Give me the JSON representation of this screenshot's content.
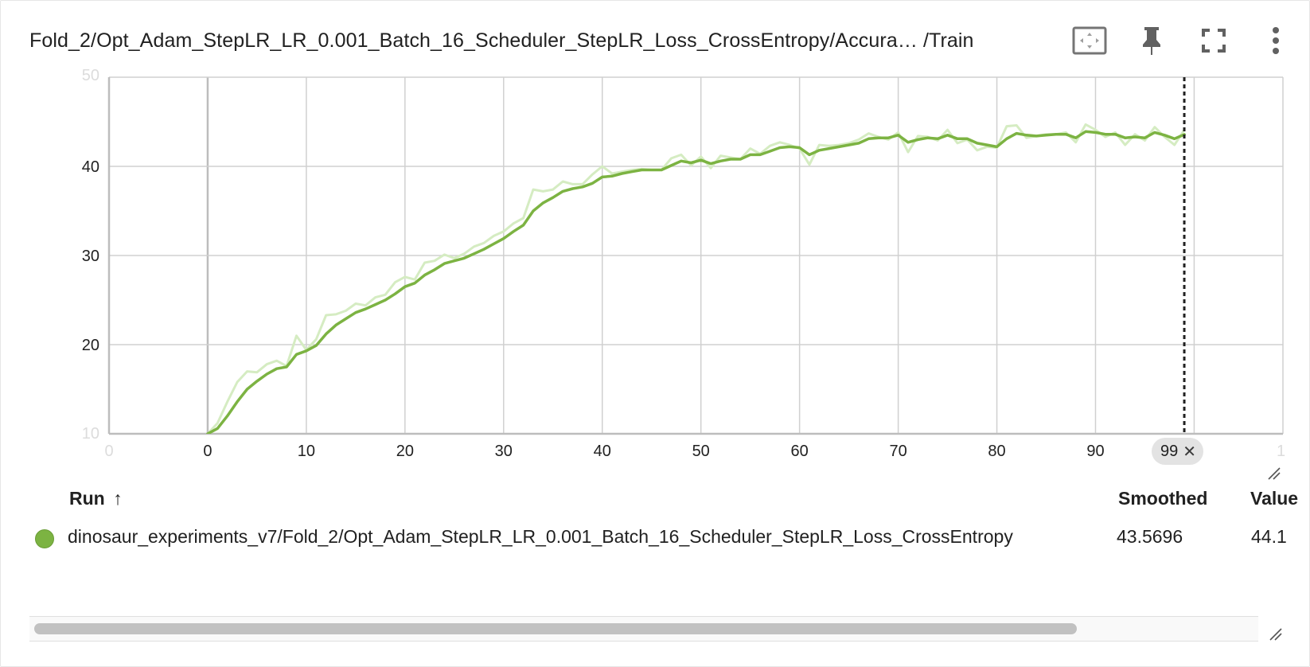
{
  "card": {
    "title": "Fold_2/Opt_Adam_StepLR_LR_0.001_Batch_16_Scheduler_StepLR_Loss_CrossEntropy/Accura… /Train"
  },
  "header_icons": [
    "fit-domain-icon",
    "pin-icon",
    "fullscreen-icon",
    "more-vert-icon"
  ],
  "chart_data": {
    "type": "line",
    "xlim": [
      -10,
      109
    ],
    "ylim": [
      10,
      50
    ],
    "x_ticks": [
      0,
      10,
      20,
      30,
      40,
      50,
      60,
      70,
      80,
      90
    ],
    "x_tick_labels": [
      "0",
      "10",
      "20",
      "30",
      "40",
      "50",
      "60",
      "70",
      "80",
      "90"
    ],
    "y_ticks": [
      20,
      30,
      40
    ],
    "y_tick_labels": [
      "20",
      "30",
      "40"
    ],
    "y_edge_labels": [
      "10",
      "50"
    ],
    "x_edge_labels": [
      "0",
      "1"
    ],
    "grid": true,
    "hover_step": 99,
    "hover_step_label": "99",
    "series": [
      {
        "style": "raw",
        "color": "#d5ecc2",
        "x": [
          0,
          1,
          2,
          3,
          4,
          5,
          6,
          7,
          8,
          9,
          10,
          11,
          12,
          13,
          14,
          15,
          16,
          17,
          18,
          19,
          20,
          21,
          22,
          23,
          24,
          25,
          26,
          27,
          28,
          29,
          30,
          31,
          32,
          33,
          34,
          35,
          36,
          37,
          38,
          39,
          40,
          41,
          42,
          43,
          44,
          45,
          46,
          47,
          48,
          49,
          50,
          51,
          52,
          53,
          54,
          55,
          56,
          57,
          58,
          59,
          60,
          61,
          62,
          63,
          64,
          65,
          66,
          67,
          68,
          69,
          70,
          71,
          72,
          73,
          74,
          75,
          76,
          77,
          78,
          79,
          80,
          81,
          82,
          83,
          84,
          85,
          86,
          87,
          88,
          89,
          90,
          91,
          92,
          93,
          94,
          95,
          96,
          97,
          98,
          99
        ],
        "values": [
          10.0,
          11.2,
          13.6,
          15.8,
          17.0,
          16.9,
          17.8,
          18.2,
          17.6,
          21.0,
          19.4,
          20.6,
          23.3,
          23.4,
          23.8,
          24.6,
          24.4,
          25.3,
          25.6,
          27.0,
          27.6,
          27.3,
          29.2,
          29.4,
          30.1,
          29.7,
          30.2,
          31.0,
          31.4,
          32.2,
          32.7,
          33.6,
          34.2,
          37.4,
          37.2,
          37.4,
          38.3,
          38.0,
          38.0,
          39.1,
          40.0,
          39.2,
          39.4,
          39.6,
          39.7,
          39.6,
          39.6,
          40.9,
          41.3,
          40.1,
          41.1,
          39.8,
          41.2,
          41.0,
          40.8,
          42.0,
          41.4,
          42.3,
          42.7,
          42.4,
          42.0,
          40.2,
          42.4,
          42.3,
          42.4,
          42.6,
          43.0,
          43.7,
          43.3,
          43.0,
          43.8,
          41.6,
          43.4,
          43.3,
          42.9,
          44.1,
          42.6,
          43.0,
          41.8,
          42.2,
          42.1,
          44.5,
          44.6,
          43.2,
          43.4,
          43.6,
          43.6,
          43.8,
          42.7,
          44.7,
          44.1,
          43.3,
          43.8,
          42.4,
          43.6,
          42.9,
          44.4,
          43.3,
          42.4,
          44.1
        ]
      },
      {
        "style": "smoothed",
        "color": "#7cb342",
        "x": [
          0,
          1,
          2,
          3,
          4,
          5,
          6,
          7,
          8,
          9,
          10,
          11,
          12,
          13,
          14,
          15,
          16,
          17,
          18,
          19,
          20,
          21,
          22,
          23,
          24,
          25,
          26,
          27,
          28,
          29,
          30,
          31,
          32,
          33,
          34,
          35,
          36,
          37,
          38,
          39,
          40,
          41,
          42,
          43,
          44,
          45,
          46,
          47,
          48,
          49,
          50,
          51,
          52,
          53,
          54,
          55,
          56,
          57,
          58,
          59,
          60,
          61,
          62,
          63,
          64,
          65,
          66,
          67,
          68,
          69,
          70,
          71,
          72,
          73,
          74,
          75,
          76,
          77,
          78,
          79,
          80,
          81,
          82,
          83,
          84,
          85,
          86,
          87,
          88,
          89,
          90,
          91,
          92,
          93,
          94,
          95,
          96,
          97,
          98,
          99
        ],
        "values": [
          10.0,
          10.6,
          12.0,
          13.6,
          15.0,
          15.9,
          16.7,
          17.3,
          17.5,
          18.9,
          19.3,
          19.9,
          21.2,
          22.2,
          22.9,
          23.6,
          24.0,
          24.5,
          25.0,
          25.7,
          26.5,
          26.9,
          27.8,
          28.4,
          29.1,
          29.4,
          29.7,
          30.2,
          30.7,
          31.3,
          31.9,
          32.7,
          33.4,
          35.0,
          35.9,
          36.5,
          37.2,
          37.5,
          37.7,
          38.1,
          38.8,
          38.9,
          39.2,
          39.4,
          39.6,
          39.6,
          39.6,
          40.1,
          40.6,
          40.4,
          40.7,
          40.3,
          40.6,
          40.8,
          40.8,
          41.3,
          41.3,
          41.7,
          42.1,
          42.2,
          42.1,
          41.3,
          41.8,
          42.0,
          42.2,
          42.4,
          42.6,
          43.1,
          43.2,
          43.2,
          43.5,
          42.7,
          43.0,
          43.2,
          43.1,
          43.5,
          43.1,
          43.1,
          42.6,
          42.4,
          42.2,
          43.1,
          43.7,
          43.5,
          43.4,
          43.5,
          43.6,
          43.6,
          43.2,
          43.9,
          43.8,
          43.6,
          43.6,
          43.2,
          43.3,
          43.2,
          43.8,
          43.5,
          43.1,
          43.5696
        ]
      }
    ]
  },
  "table": {
    "headers": {
      "run": "Run",
      "run_sort_icon": "↑",
      "smoothed": "Smoothed",
      "value": "Value"
    },
    "rows": [
      {
        "color": "#7cb342",
        "run": "dinosaur_experiments_v7/Fold_2/Opt_Adam_StepLR_LR_0.001_Batch_16_Scheduler_StepLR_Loss_CrossEntropy",
        "smoothed": "43.5696",
        "value": "44.1"
      }
    ]
  }
}
